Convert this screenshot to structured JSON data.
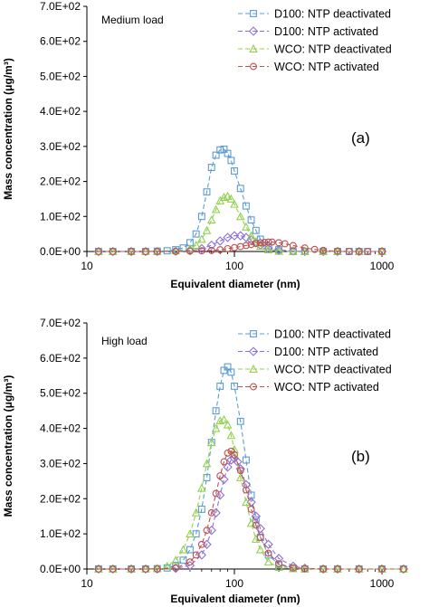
{
  "chart_data": [
    {
      "type": "line",
      "annotation": "Medium load",
      "panel_label": "(a)",
      "xlabel": "Equivalent diameter (nm)",
      "ylabel": "Mass concentration (μg/m³)",
      "xscale": "log",
      "xlim": [
        10,
        1000
      ],
      "ylim": [
        0,
        700
      ],
      "xticks": [
        "10",
        "100",
        "1000"
      ],
      "yticks": [
        "0.0E+00",
        "1.0E+02",
        "2.0E+02",
        "3.0E+02",
        "4.0E+02",
        "5.0E+02",
        "6.0E+02",
        "7.0E+02"
      ],
      "legend_position": "top-right",
      "grid": false,
      "series": [
        {
          "name": "D100: NTP deactivated",
          "color": "#5b9bd5",
          "marker": "square",
          "x": [
            12,
            15,
            20,
            25,
            30,
            35,
            40,
            45,
            50,
            55,
            60,
            65,
            70,
            75,
            80,
            85,
            90,
            95,
            100,
            110,
            120,
            130,
            140,
            150,
            170,
            200,
            250,
            300,
            400,
            500,
            600,
            700,
            800,
            1000
          ],
          "y": [
            0,
            0,
            0,
            0,
            1,
            2,
            5,
            10,
            25,
            50,
            100,
            170,
            240,
            275,
            290,
            292,
            280,
            260,
            230,
            180,
            130,
            90,
            60,
            35,
            15,
            5,
            1,
            0,
            0,
            0,
            0,
            0,
            0,
            0
          ]
        },
        {
          "name": "D100: NTP activated",
          "color": "#8e6fd6",
          "marker": "diamond",
          "x": [
            12,
            15,
            20,
            25,
            30,
            40,
            50,
            60,
            70,
            80,
            90,
            100,
            110,
            120,
            130,
            140,
            150,
            170,
            200,
            250,
            300,
            400,
            500,
            700,
            1000
          ],
          "y": [
            0,
            0,
            0,
            0,
            0,
            1,
            3,
            8,
            18,
            30,
            40,
            45,
            45,
            40,
            33,
            25,
            18,
            8,
            3,
            1,
            0,
            0,
            0,
            0,
            0
          ]
        },
        {
          "name": "WCO: NTP deactivated",
          "color": "#92d050",
          "marker": "triangle",
          "x": [
            12,
            15,
            20,
            25,
            30,
            40,
            50,
            55,
            60,
            65,
            70,
            75,
            80,
            85,
            90,
            95,
            100,
            110,
            120,
            130,
            140,
            150,
            170,
            200,
            250,
            300,
            400,
            500,
            700,
            1000
          ],
          "y": [
            0,
            0,
            0,
            0,
            0,
            2,
            8,
            18,
            35,
            60,
            90,
            120,
            145,
            155,
            158,
            150,
            135,
            100,
            70,
            45,
            28,
            15,
            5,
            1,
            0,
            0,
            0,
            0,
            0,
            0
          ]
        },
        {
          "name": "WCO: NTP activated",
          "color": "#c0504d",
          "marker": "circle",
          "x": [
            12,
            15,
            20,
            25,
            30,
            40,
            50,
            60,
            70,
            80,
            90,
            100,
            110,
            120,
            130,
            140,
            150,
            160,
            170,
            180,
            200,
            220,
            250,
            300,
            350,
            400,
            500,
            600,
            700,
            800,
            1000
          ],
          "y": [
            0,
            0,
            0,
            0,
            0,
            0,
            1,
            2,
            3,
            5,
            8,
            11,
            14,
            17,
            20,
            23,
            25,
            26,
            27,
            27,
            25,
            22,
            17,
            10,
            6,
            3,
            1,
            0,
            0,
            0,
            0
          ]
        }
      ]
    },
    {
      "type": "line",
      "annotation": "High load",
      "panel_label": "(b)",
      "xlabel": "Equivalent diameter (nm)",
      "ylabel": "Mass concentration (μg/m³)",
      "xscale": "log",
      "xlim": [
        10,
        1000
      ],
      "ylim": [
        0,
        700
      ],
      "xticks": [
        "10",
        "100",
        "1000"
      ],
      "yticks": [
        "0.0E+00",
        "1.0E+02",
        "2.0E+02",
        "3.0E+02",
        "4.0E+02",
        "5.0E+02",
        "6.0E+02",
        "7.0E+02"
      ],
      "legend_position": "top-right",
      "grid": false,
      "series": [
        {
          "name": "D100: NTP deactivated",
          "color": "#5b9bd5",
          "marker": "square",
          "x": [
            12,
            15,
            20,
            25,
            30,
            35,
            40,
            45,
            50,
            55,
            60,
            65,
            70,
            75,
            80,
            85,
            90,
            95,
            100,
            110,
            120,
            130,
            140,
            150,
            170,
            200,
            250,
            300,
            400,
            500,
            700,
            1000,
            1400
          ],
          "y": [
            0,
            0,
            0,
            0,
            1,
            3,
            10,
            25,
            55,
            100,
            170,
            260,
            360,
            450,
            520,
            565,
            575,
            560,
            520,
            420,
            310,
            210,
            140,
            90,
            40,
            12,
            2,
            0,
            0,
            0,
            0,
            0,
            0
          ]
        },
        {
          "name": "D100: NTP activated",
          "color": "#8e6fd6",
          "marker": "diamond",
          "x": [
            12,
            15,
            20,
            25,
            30,
            40,
            50,
            60,
            65,
            70,
            75,
            80,
            85,
            90,
            95,
            100,
            105,
            110,
            120,
            130,
            140,
            150,
            170,
            200,
            250,
            300,
            400,
            500,
            700,
            1000,
            1400
          ],
          "y": [
            0,
            0,
            0,
            0,
            0,
            2,
            10,
            40,
            70,
            110,
            160,
            210,
            255,
            290,
            310,
            315,
            305,
            285,
            240,
            190,
            150,
            115,
            70,
            30,
            8,
            2,
            0,
            0,
            0,
            0,
            0
          ]
        },
        {
          "name": "WCO: NTP deactivated",
          "color": "#92d050",
          "marker": "triangle",
          "x": [
            12,
            15,
            20,
            25,
            30,
            35,
            40,
            45,
            50,
            55,
            60,
            65,
            70,
            75,
            80,
            85,
            90,
            95,
            100,
            110,
            120,
            130,
            140,
            150,
            170,
            200,
            250,
            300,
            400,
            500,
            700,
            1000,
            1400
          ],
          "y": [
            0,
            0,
            0,
            0,
            2,
            8,
            25,
            55,
            100,
            160,
            230,
            300,
            360,
            400,
            422,
            425,
            410,
            380,
            340,
            260,
            190,
            130,
            85,
            55,
            20,
            5,
            1,
            0,
            0,
            0,
            0,
            0,
            0
          ]
        },
        {
          "name": "WCO: NTP activated",
          "color": "#c0504d",
          "marker": "circle",
          "x": [
            12,
            15,
            20,
            25,
            30,
            40,
            50,
            55,
            60,
            65,
            70,
            75,
            80,
            85,
            90,
            95,
            100,
            110,
            120,
            130,
            140,
            150,
            170,
            200,
            250,
            300,
            400,
            500,
            700,
            1000,
            1400
          ],
          "y": [
            0,
            0,
            0,
            0,
            0,
            3,
            20,
            40,
            70,
            110,
            160,
            215,
            265,
            305,
            330,
            335,
            325,
            280,
            225,
            170,
            125,
            90,
            45,
            15,
            3,
            1,
            0,
            0,
            0,
            0,
            0
          ]
        }
      ]
    }
  ]
}
